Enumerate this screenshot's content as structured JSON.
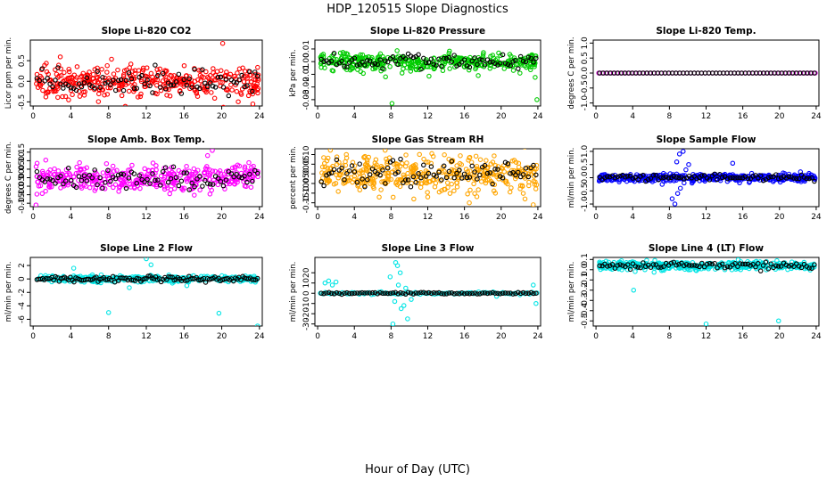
{
  "figure": {
    "title": "HDP_120515  Slope Diagnostics",
    "xlabel": "Hour of Day (UTC)"
  },
  "chart_data": [
    {
      "type": "scatter",
      "title": "Slope Li-820 CO2",
      "ylabel": "Licor ppm per min.",
      "color": "#ff0000",
      "x_ticks": [
        0,
        4,
        8,
        12,
        16,
        20,
        24
      ],
      "y_ticks": [
        -0.5,
        0.0,
        0.5
      ],
      "y_tick_labels": [
        "-0.5",
        "0.0",
        "0.5"
      ],
      "xlim": [
        -0.3,
        24.3
      ],
      "ylim": [
        -0.6,
        1.0
      ],
      "center": 0.0,
      "spread": 0.18,
      "dense": true,
      "n_color": 380,
      "n_black": 85,
      "outliers": [
        [
          20.1,
          0.92
        ],
        [
          23.3,
          -0.55
        ]
      ]
    },
    {
      "type": "scatter",
      "title": "Slope Li-820 Pressure",
      "ylabel": "kPa per min.",
      "color": "#00cc00",
      "x_ticks": [
        0,
        4,
        8,
        12,
        16,
        20,
        24
      ],
      "y_ticks": [
        -0.03,
        -0.02,
        -0.01,
        0.0,
        0.01
      ],
      "y_tick_labels": [
        "-0.03",
        "-0.02",
        "-0.01",
        "0.00",
        "0.01"
      ],
      "xlim": [
        -0.3,
        24.3
      ],
      "ylim": [
        -0.035,
        0.017
      ],
      "center": 0.0,
      "spread": 0.0035,
      "dense": true,
      "n_color": 380,
      "n_black": 85,
      "outliers": [
        [
          8.1,
          -0.033
        ],
        [
          23.9,
          -0.03
        ],
        [
          7.4,
          -0.012
        ],
        [
          9.2,
          -0.009
        ],
        [
          17.5,
          -0.011
        ]
      ]
    },
    {
      "type": "scatter",
      "title": "Slope Li-820 Temp.",
      "ylabel": "degrees C per min.",
      "color": "#cc00cc",
      "x_ticks": [
        0,
        4,
        8,
        12,
        16,
        20,
        24
      ],
      "y_ticks": [
        -1.0,
        -0.5,
        0.0,
        0.5,
        1.0
      ],
      "y_tick_labels": [
        "-1.0",
        "-0.5",
        "0.0",
        "0.5",
        "1.0"
      ],
      "xlim": [
        -0.3,
        24.3
      ],
      "ylim": [
        -1.1,
        1.1
      ],
      "center": 0.0,
      "spread": 0.0,
      "dense": false,
      "n_color": 60,
      "n_black": 60,
      "outliers": []
    },
    {
      "type": "scatter",
      "title": "Slope Amb. Box Temp.",
      "ylabel": "degrees C per min.",
      "color": "#ff00ff",
      "x_ticks": [
        0,
        4,
        8,
        12,
        16,
        20,
        24
      ],
      "y_ticks": [
        -0.15,
        -0.1,
        -0.05,
        0.0,
        0.05,
        0.1,
        0.15
      ],
      "y_tick_labels": [
        "-0.15",
        "-0.10",
        "-0.05",
        "0.00",
        "0.05",
        "0.10",
        "0.15"
      ],
      "xlim": [
        -0.3,
        24.3
      ],
      "ylim": [
        -0.17,
        0.17
      ],
      "center": 0.0,
      "spread": 0.04,
      "dense": true,
      "n_color": 380,
      "n_black": 85,
      "outliers": [
        [
          0.3,
          -0.16
        ],
        [
          19.0,
          0.16
        ],
        [
          18.5,
          0.13
        ]
      ]
    },
    {
      "type": "scatter",
      "title": "Slope Gas Stream RH",
      "ylabel": "percent per min.",
      "color": "#ffa500",
      "x_ticks": [
        0,
        4,
        8,
        12,
        16,
        20,
        24
      ],
      "y_ticks": [
        -0.15,
        -0.1,
        -0.05,
        0.0,
        0.05,
        0.1
      ],
      "y_tick_labels": [
        "-0.15",
        "-0.10",
        "-0.05",
        "0.00",
        "0.05",
        "0.10"
      ],
      "xlim": [
        -0.3,
        24.3
      ],
      "ylim": [
        -0.17,
        0.13
      ],
      "center": 0.0,
      "spread": 0.045,
      "dense": true,
      "n_color": 420,
      "n_black": 85,
      "outliers": [
        [
          23.5,
          -0.16
        ],
        [
          22.6,
          -0.13
        ],
        [
          12.0,
          -0.12
        ]
      ]
    },
    {
      "type": "scatter",
      "title": "Slope Sample Flow",
      "ylabel": "ml/min per min.",
      "color": "#0000ff",
      "x_ticks": [
        0,
        4,
        8,
        12,
        16,
        20,
        24
      ],
      "y_ticks": [
        -1.0,
        -0.5,
        0.0,
        0.5,
        1.0
      ],
      "y_tick_labels": [
        "-1.0",
        "-0.5",
        "0.0",
        "0.5",
        "1.0"
      ],
      "xlim": [
        -0.3,
        24.3
      ],
      "ylim": [
        -1.1,
        1.1
      ],
      "center": 0.0,
      "spread": 0.07,
      "dense": true,
      "n_color": 420,
      "n_black": 85,
      "outliers": [
        [
          8.6,
          -1.0
        ],
        [
          8.9,
          -0.6
        ],
        [
          9.2,
          -0.4
        ],
        [
          9.6,
          -0.2
        ],
        [
          9.8,
          0.3
        ],
        [
          8.8,
          0.6
        ],
        [
          9.1,
          0.9
        ],
        [
          9.5,
          1.0
        ],
        [
          10.1,
          0.5
        ],
        [
          14.9,
          0.55
        ],
        [
          8.3,
          -0.8
        ],
        [
          10.5,
          -0.15
        ]
      ]
    },
    {
      "type": "scatter",
      "title": "Slope Line 2 Flow",
      "ylabel": "ml/min per min.",
      "color": "#00e5e5",
      "x_ticks": [
        0,
        4,
        8,
        12,
        16,
        20,
        24
      ],
      "y_ticks": [
        -6,
        -4,
        -2,
        0,
        2
      ],
      "y_tick_labels": [
        "-6",
        "-4",
        "-2",
        "0",
        "2"
      ],
      "xlim": [
        -0.3,
        24.3
      ],
      "ylim": [
        -7.0,
        3.2
      ],
      "center": 0.0,
      "spread": 0.25,
      "dense": true,
      "n_color": 300,
      "n_black": 120,
      "outliers": [
        [
          8.0,
          -5.0
        ],
        [
          12.0,
          3.0
        ],
        [
          19.7,
          -5.1
        ],
        [
          23.8,
          -7.0
        ],
        [
          12.5,
          2.1
        ],
        [
          16.3,
          -1.0
        ],
        [
          4.3,
          1.6
        ],
        [
          10.2,
          -1.3
        ]
      ]
    },
    {
      "type": "scatter",
      "title": "Slope Line 3 Flow",
      "ylabel": "ml/min per min.",
      "color": "#00e5e5",
      "x_ticks": [
        0,
        4,
        8,
        12,
        16,
        20,
        24
      ],
      "y_ticks": [
        -30,
        -20,
        -10,
        0,
        10,
        20
      ],
      "y_tick_labels": [
        "-30",
        "-20",
        "-10",
        "0",
        "10",
        "20"
      ],
      "xlim": [
        -0.3,
        24.3
      ],
      "ylim": [
        -32,
        35
      ],
      "center": 0.0,
      "spread": 0.6,
      "dense": false,
      "n_color": 90,
      "n_black": 85,
      "outliers": [
        [
          8.2,
          -30
        ],
        [
          8.5,
          30
        ],
        [
          8.7,
          27
        ],
        [
          9.0,
          20
        ],
        [
          9.4,
          -12
        ],
        [
          9.8,
          -25
        ],
        [
          9.1,
          -15
        ],
        [
          8.4,
          -8
        ],
        [
          9.6,
          5
        ],
        [
          10.2,
          -6
        ],
        [
          0.8,
          10
        ],
        [
          1.2,
          12
        ],
        [
          1.6,
          8
        ],
        [
          2.0,
          11
        ],
        [
          7.9,
          16
        ],
        [
          8.8,
          8
        ],
        [
          23.8,
          -10
        ],
        [
          23.5,
          8
        ],
        [
          19.5,
          -3
        ]
      ]
    },
    {
      "type": "scatter",
      "title": "Slope Line 4 (LT) Flow",
      "ylabel": "ml/min per min.",
      "color": "#00e5e5",
      "x_ticks": [
        0,
        4,
        8,
        12,
        16,
        20,
        24
      ],
      "y_ticks": [
        -0.5,
        -0.4,
        -0.3,
        -0.2,
        -0.1,
        0.0,
        0.1
      ],
      "y_tick_labels": [
        "-0.5",
        "-0.4",
        "-0.3",
        "-0.2",
        "-0.1",
        "0.0",
        "0.1"
      ],
      "xlim": [
        -0.3,
        24.3
      ],
      "ylim": [
        -0.55,
        0.12
      ],
      "center": 0.04,
      "spread": 0.02,
      "dense": true,
      "n_color": 420,
      "n_black": 85,
      "outliers": [
        [
          4.1,
          -0.2
        ],
        [
          12.0,
          -0.53
        ],
        [
          19.9,
          -0.5
        ]
      ]
    }
  ]
}
